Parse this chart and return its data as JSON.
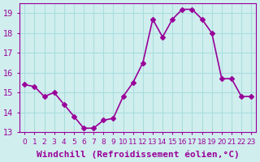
{
  "x": [
    0,
    1,
    2,
    3,
    4,
    5,
    6,
    7,
    8,
    9,
    10,
    11,
    12,
    13,
    14,
    15,
    16,
    17,
    18,
    19,
    20,
    21,
    22,
    23
  ],
  "y": [
    15.4,
    15.3,
    14.8,
    15.0,
    14.4,
    13.8,
    13.2,
    13.2,
    13.6,
    13.7,
    14.8,
    15.5,
    16.5,
    18.7,
    17.8,
    18.7,
    19.2,
    19.2,
    18.7,
    18.0,
    15.7,
    15.7,
    14.8,
    14.8
  ],
  "line_color": "#990099",
  "marker": "D",
  "markersize": 3,
  "linewidth": 1.2,
  "xlabel": "Windchill (Refroidissement éolien,°C)",
  "ylabel": "",
  "title": "",
  "xlim": [
    -0.5,
    23.5
  ],
  "ylim": [
    13.0,
    19.5
  ],
  "yticks": [
    13,
    14,
    15,
    16,
    17,
    18,
    19
  ],
  "xtick_labels": [
    "0",
    "1",
    "2",
    "3",
    "4",
    "5",
    "6",
    "7",
    "8",
    "9",
    "10",
    "11",
    "12",
    "13",
    "14",
    "15",
    "16",
    "17",
    "18",
    "19",
    "20",
    "21",
    "22",
    "23"
  ],
  "grid_color": "#aadddd",
  "bg_color": "#d0eeee",
  "tick_color": "#990099",
  "label_color": "#990099",
  "tick_fontsize": 7,
  "xlabel_fontsize": 8
}
